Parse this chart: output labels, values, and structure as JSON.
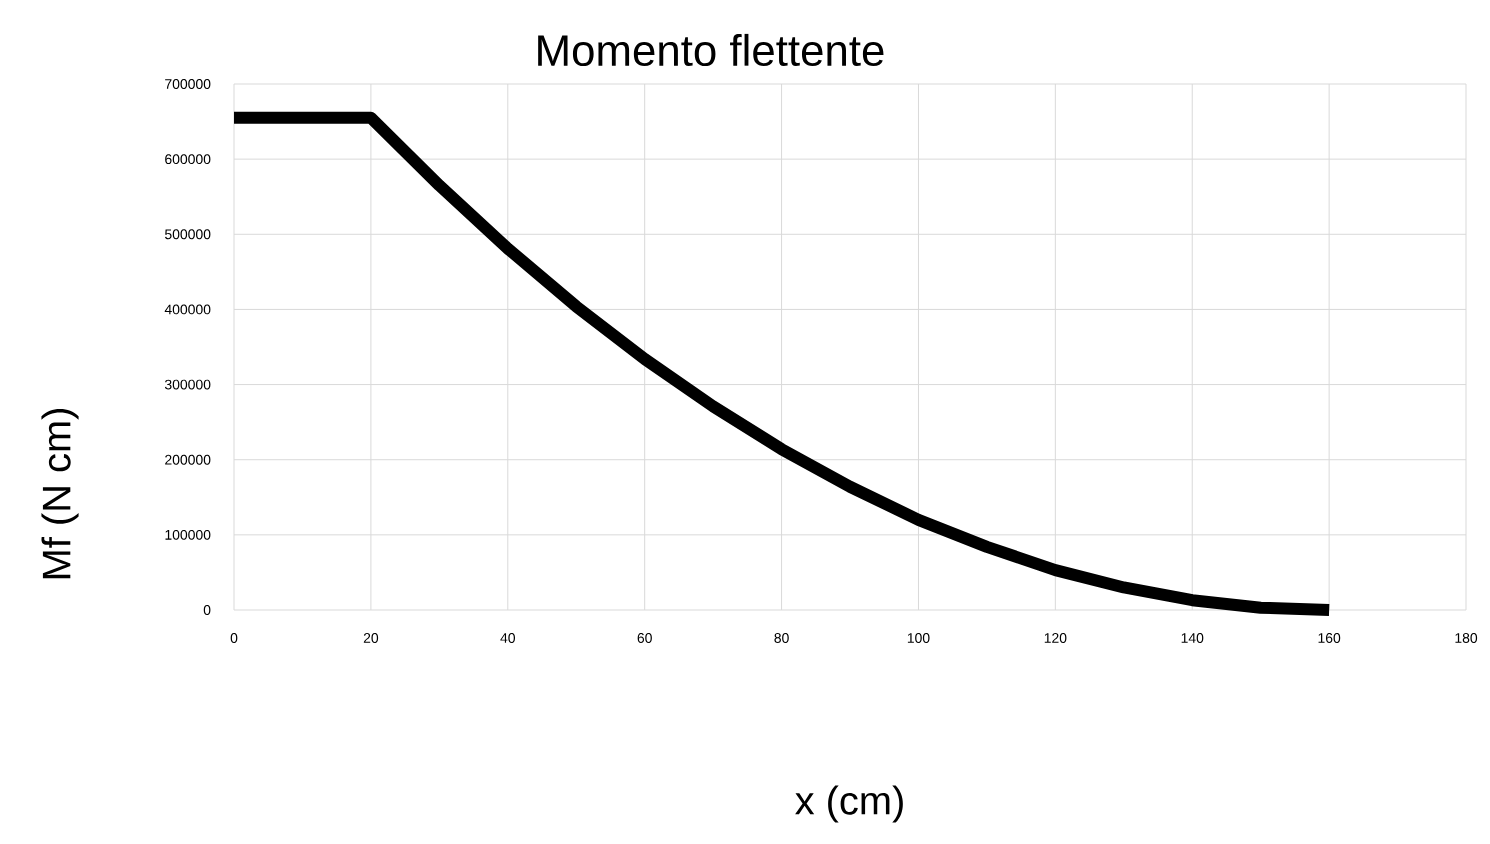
{
  "chart_data": {
    "type": "line",
    "title": "Momento flettente",
    "xlabel": "x (cm)",
    "ylabel": "Mf (N cm)",
    "x": [
      0,
      10,
      20,
      30,
      40,
      50,
      60,
      70,
      80,
      90,
      100,
      110,
      120,
      130,
      140,
      150,
      160
    ],
    "series": [
      {
        "color": "#000000",
        "values": [
          655000,
          655000,
          655000,
          565000,
          481000,
          404000,
          334000,
          271000,
          214000,
          164000,
          120000,
          84000,
          53000,
          30000,
          13000,
          3000,
          0
        ]
      }
    ],
    "xlim": [
      0,
      180
    ],
    "ylim": [
      0,
      700000
    ],
    "xticks": [
      0,
      20,
      40,
      60,
      80,
      100,
      120,
      140,
      160,
      180
    ],
    "yticks": [
      0,
      100000,
      200000,
      300000,
      400000,
      500000,
      600000,
      700000
    ],
    "grid": true,
    "marker": "none",
    "line_style": "solid"
  }
}
